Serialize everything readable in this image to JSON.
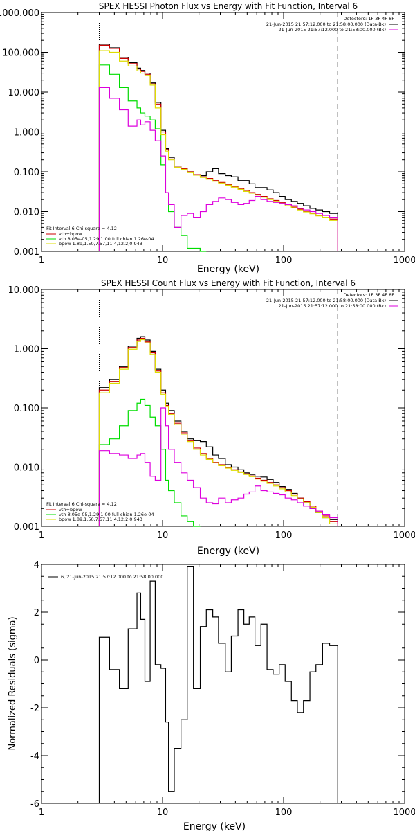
{
  "colors": {
    "data": "#000000",
    "total": "#cc0000",
    "thermal": "#00dd00",
    "background": "#dd00dd",
    "bpow": "#dddd00"
  },
  "chart_data": [
    {
      "type": "line",
      "title": "SPEX HESSI Photon Flux vs Energy with Fit Function, Interval 6",
      "xlabel": "Energy (keV)",
      "ylabel": "",
      "xscale": "log",
      "yscale": "log",
      "xlim": [
        1,
        1000
      ],
      "ylim": [
        0.001,
        1000
      ],
      "xticks": [
        "1",
        "10",
        "100",
        "1000"
      ],
      "yticks": [
        "0.001",
        "0.010",
        "0.100",
        "1.000",
        "10.000",
        "100.000",
        "1000.000"
      ],
      "grid": false,
      "legend_top_right": [
        "Detectors: 1F 3F 4F 8F",
        "21-Jun-2015 21:57:12.000 to 21:58:00.000 (Data-Bk)",
        "21-Jun-2015 21:57:12.000 to 21:58:00.000 (Bk)"
      ],
      "legend_bottom_left": [
        "Fit Interval 6   Chi-square = 4.12",
        "vth+bpow",
        "vth 8.05e-05,1.29,1.00  full chian 1.26e-04",
        "bpow 1.89,1.50,7.57,11.4,12.2,0.943"
      ],
      "markers": [
        {
          "x": 3,
          "style": "dotted"
        },
        {
          "x": 280,
          "style": "dashed"
        }
      ],
      "bin_edges": [
        3,
        3.65,
        4.4,
        5.2,
        6.15,
        6.6,
        7.15,
        7.9,
        8.7,
        9.7,
        10.6,
        11.2,
        12.5,
        14.2,
        16.0,
        18.0,
        20.5,
        23,
        26,
        29,
        33,
        37,
        42,
        47,
        52,
        58,
        65,
        73,
        82,
        92,
        103,
        116,
        130,
        146,
        165,
        185,
        210,
        240,
        280
      ],
      "series": [
        {
          "name": "21-Jun-2015 21:57:12.000 to 21:58:00.000 (Data-Bk)",
          "color": "#000000",
          "values": [
            160,
            130,
            75,
            55,
            40,
            35,
            30,
            17,
            5.5,
            1.1,
            0.38,
            0.23,
            0.13,
            0.12,
            0.1,
            0.085,
            0.08,
            0.1,
            0.12,
            0.09,
            0.08,
            0.075,
            0.06,
            0.06,
            0.05,
            0.04,
            0.04,
            0.035,
            0.03,
            0.024,
            0.02,
            0.018,
            0.016,
            0.014,
            0.012,
            0.011,
            0.01,
            0.009
          ]
        },
        {
          "name": "vth+bpow",
          "color": "#cc0000",
          "values": [
            150,
            125,
            70,
            52,
            38,
            33,
            28,
            16,
            5.0,
            1.0,
            0.36,
            0.21,
            0.14,
            0.12,
            0.1,
            0.085,
            0.075,
            0.068,
            0.06,
            0.054,
            0.048,
            0.043,
            0.038,
            0.034,
            0.03,
            0.027,
            0.024,
            0.021,
            0.019,
            0.017,
            0.015,
            0.013,
            0.0115,
            0.01,
            0.009,
            0.008,
            0.007,
            0.0065
          ]
        },
        {
          "name": "vth",
          "color": "#00dd00",
          "values": [
            48,
            28,
            13,
            6,
            4,
            3,
            2.5,
            2.0,
            1.2,
            0.15,
            0.03,
            0.01,
            0.004,
            0.0025,
            0.0012,
            0.0012,
            0.0009,
            null,
            null,
            null,
            null,
            null,
            null,
            null,
            null,
            null,
            null,
            null,
            null,
            null,
            null,
            null,
            null,
            null,
            null,
            null,
            null,
            null
          ]
        },
        {
          "name": "bpow",
          "color": "#dddd00",
          "values": [
            110,
            100,
            60,
            45,
            34,
            30,
            26,
            15,
            4.0,
            0.85,
            0.33,
            0.2,
            0.13,
            0.115,
            0.095,
            0.082,
            0.072,
            0.065,
            0.058,
            0.052,
            0.046,
            0.041,
            0.036,
            0.032,
            0.029,
            0.026,
            0.023,
            0.02,
            0.018,
            0.016,
            0.014,
            0.0125,
            0.011,
            0.0098,
            0.0088,
            0.0078,
            0.007,
            0.006
          ]
        },
        {
          "name": "21-Jun-2015 21:57:12.000 to 21:58:00.000 (Bk)",
          "color": "#dd00dd",
          "values": [
            13,
            7,
            3.6,
            1.4,
            2.0,
            1.5,
            1.8,
            1.1,
            0.6,
            0.25,
            0.03,
            0.015,
            0.004,
            0.008,
            0.009,
            0.007,
            0.01,
            0.015,
            0.018,
            0.022,
            0.02,
            0.017,
            0.015,
            0.016,
            0.019,
            0.024,
            0.02,
            0.018,
            0.017,
            0.016,
            0.015,
            0.014,
            0.012,
            0.011,
            0.01,
            0.009,
            0.008,
            0.007
          ]
        }
      ]
    },
    {
      "type": "line",
      "title": "SPEX HESSI Count Flux vs Energy with Fit Function, Interval 6",
      "xlabel": "Energy (keV)",
      "ylabel": "",
      "xscale": "log",
      "yscale": "log",
      "xlim": [
        1,
        1000
      ],
      "ylim": [
        0.001,
        10
      ],
      "xticks": [
        "1",
        "10",
        "100",
        "1000"
      ],
      "yticks": [
        "0.001",
        "0.010",
        "0.100",
        "1.000",
        "10.000"
      ],
      "grid": false,
      "legend_top_right": [
        "Detectors: 1F 3F 4F 8F",
        "21-Jun-2015 21:57:12.000 to 21:58:00.000 (Data-Bk)",
        "21-Jun-2015 21:57:12.000 to 21:58:00.000 (Bk)"
      ],
      "legend_bottom_left": [
        "Fit Interval 6   Chi-square = 4.12",
        "vth+bpow",
        "vth 8.05e-05,1.29,1.00  full chian 1.26e-04",
        "bpow 1.89,1.50,7.57,11.4,12.2,0.943"
      ],
      "markers": [
        {
          "x": 3,
          "style": "dotted"
        },
        {
          "x": 280,
          "style": "dashed"
        }
      ],
      "bin_edges": [
        3,
        3.65,
        4.4,
        5.2,
        6.15,
        6.6,
        7.15,
        7.9,
        8.7,
        9.7,
        10.6,
        11.2,
        12.5,
        14.2,
        16.0,
        18.0,
        20.5,
        23,
        26,
        29,
        33,
        37,
        42,
        47,
        52,
        58,
        65,
        73,
        82,
        92,
        103,
        116,
        130,
        146,
        165,
        185,
        210,
        240,
        280
      ],
      "series": [
        {
          "name": "21-Jun-2015 21:57:12.000 to 21:58:00.000 (Data-Bk)",
          "color": "#000000",
          "values": [
            0.22,
            0.3,
            0.5,
            1.1,
            1.5,
            1.6,
            1.4,
            0.9,
            0.45,
            0.2,
            0.12,
            0.09,
            0.06,
            0.04,
            0.03,
            0.028,
            0.027,
            0.022,
            0.016,
            0.014,
            0.011,
            0.01,
            0.009,
            0.008,
            0.0075,
            0.007,
            0.0068,
            0.0062,
            0.0055,
            0.0047,
            0.0042,
            0.0036,
            0.003,
            0.0025,
            0.002,
            0.0017,
            0.0014,
            0.0013
          ]
        },
        {
          "name": "vth+bpow",
          "color": "#cc0000",
          "values": [
            0.2,
            0.28,
            0.48,
            1.05,
            1.4,
            1.5,
            1.3,
            0.85,
            0.42,
            0.18,
            0.11,
            0.08,
            0.055,
            0.038,
            0.028,
            0.021,
            0.017,
            0.014,
            0.012,
            0.011,
            0.0098,
            0.009,
            0.0083,
            0.0077,
            0.0071,
            0.0065,
            0.006,
            0.0055,
            0.005,
            0.0045,
            0.004,
            0.0035,
            0.003,
            0.0026,
            0.0022,
            0.0018,
            0.0015,
            0.0012
          ]
        },
        {
          "name": "vth",
          "color": "#00dd00",
          "values": [
            0.024,
            0.03,
            0.05,
            0.09,
            0.12,
            0.14,
            0.11,
            0.07,
            0.05,
            0.02,
            0.006,
            0.004,
            0.0025,
            0.0015,
            0.0012,
            0.0009,
            null,
            null,
            null,
            null,
            null,
            null,
            null,
            null,
            null,
            null,
            null,
            null,
            null,
            null,
            null,
            null,
            null,
            null,
            null,
            null,
            null,
            null
          ]
        },
        {
          "name": "bpow",
          "color": "#dddd00",
          "values": [
            0.18,
            0.26,
            0.45,
            0.98,
            1.32,
            1.42,
            1.25,
            0.8,
            0.4,
            0.17,
            0.105,
            0.077,
            0.052,
            0.036,
            0.027,
            0.02,
            0.016,
            0.0135,
            0.0118,
            0.0106,
            0.0096,
            0.0088,
            0.0081,
            0.0075,
            0.0069,
            0.0063,
            0.0058,
            0.0053,
            0.0048,
            0.0043,
            0.0038,
            0.0033,
            0.0029,
            0.0025,
            0.0021,
            0.0017,
            0.0014,
            0.0011
          ]
        },
        {
          "name": "21-Jun-2015 21:57:12.000 to 21:58:00.000 (Bk)",
          "color": "#dd00dd",
          "values": [
            0.019,
            0.017,
            0.016,
            0.014,
            0.016,
            0.017,
            0.012,
            0.007,
            0.006,
            0.1,
            0.05,
            0.02,
            0.012,
            0.008,
            0.006,
            0.0045,
            0.003,
            0.0025,
            0.0024,
            0.003,
            0.0025,
            0.0028,
            0.003,
            0.0035,
            0.0038,
            0.0048,
            0.004,
            0.0038,
            0.0036,
            0.0034,
            0.003,
            0.0028,
            0.0025,
            0.0022,
            0.002,
            0.0018,
            0.0016,
            0.0014
          ]
        }
      ]
    },
    {
      "type": "line",
      "title": "",
      "xlabel": "Energy (keV)",
      "ylabel": "Normalized Residuals (sigma)",
      "xscale": "log",
      "yscale": "linear",
      "xlim": [
        1,
        1000
      ],
      "ylim": [
        -6,
        4
      ],
      "xticks": [
        "1",
        "10",
        "100",
        "1000"
      ],
      "yticks": [
        "-6",
        "-4",
        "-2",
        "0",
        "2",
        "4"
      ],
      "grid": false,
      "legend": [
        "6, 21-Jun-2015 21:57:12.000 to 21:58:00.000"
      ],
      "bin_edges": [
        3,
        3.65,
        4.4,
        5.2,
        6.15,
        6.6,
        7.15,
        7.9,
        8.7,
        9.7,
        10.6,
        11.2,
        12.5,
        14.2,
        16.0,
        18.0,
        20.5,
        23,
        26,
        29,
        33,
        37,
        42,
        47,
        52,
        58,
        65,
        73,
        82,
        92,
        103,
        116,
        130,
        146,
        165,
        185,
        210,
        240,
        280
      ],
      "series": [
        {
          "name": "6, 21-Jun-2015 21:57:12.000 to 21:58:00.000",
          "color": "#000000",
          "values": [
            0.95,
            -0.4,
            -1.2,
            1.3,
            2.8,
            1.7,
            -0.9,
            3.3,
            -0.2,
            -0.35,
            -2.6,
            -5.5,
            -3.7,
            -2.5,
            3.9,
            -1.2,
            1.4,
            2.1,
            1.8,
            0.7,
            -0.5,
            1.0,
            2.1,
            1.5,
            1.8,
            0.6,
            1.5,
            -0.4,
            -0.6,
            -0.2,
            -0.9,
            -1.7,
            -2.2,
            -1.7,
            -0.5,
            -0.2,
            0.7,
            0.6
          ]
        }
      ]
    }
  ]
}
